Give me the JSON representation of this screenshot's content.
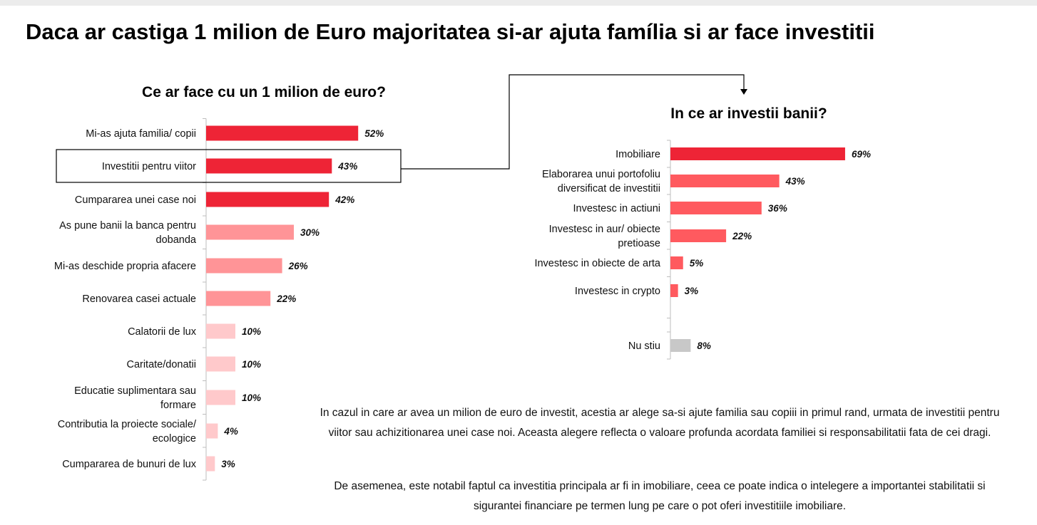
{
  "title": "Daca ar castiga 1 milion de Euro majoritatea si-ar ajuta família si ar face investitii",
  "summary": [
    "In cazul in care ar avea un milion de euro de investit, acestia ar alege sa-si ajute familia sau copiii in primul rand, urmata de investitii pentru viitor sau achizitionarea unei case noi. Aceasta alegere reflecta o valoare profunda acordata familiei si responsabilitatii fata de cei dragi.",
    "De asemenea, este notabil faptul ca investitia principala ar fi in imobiliare, ceea ce poate indica o intelegere a importantei stabilitatii si sigurantei financiare pe termen lung pe care o pot oferi investitiile imobiliare."
  ],
  "colors": {
    "strong_red": "#ee2436",
    "medium_red": "#ff5a5f",
    "salmon": "#ff9497",
    "light_pink": "#ffc9cb",
    "gray": "#c8c8c8"
  },
  "chart_data": [
    {
      "type": "bar",
      "orientation": "horizontal",
      "title": "Ce ar face cu un 1 milion de euro?",
      "xlim": [
        0,
        100
      ],
      "grid": false,
      "highlighted_category": "Investitii pentru viitor",
      "categories": [
        [
          "Mi-as ajuta familia/ copii"
        ],
        [
          "Investitii pentru viitor"
        ],
        [
          "Cumpararea unei case noi"
        ],
        [
          "As pune banii la banca pentru",
          "dobanda"
        ],
        [
          "Mi-as deschide propria afacere"
        ],
        [
          "Renovarea casei actuale"
        ],
        [
          "Calatorii de lux"
        ],
        [
          "Caritate/donatii"
        ],
        [
          "Educatie suplimentara sau",
          "formare"
        ],
        [
          "Contributia la proiecte sociale/",
          "ecologice"
        ],
        [
          "Cumpararea de bunuri de lux"
        ]
      ],
      "values": [
        52,
        43,
        42,
        30,
        26,
        22,
        10,
        10,
        10,
        4,
        3
      ],
      "value_labels": [
        "52%",
        "43%",
        "42%",
        "30%",
        "26%",
        "22%",
        "10%",
        "10%",
        "10%",
        "4%",
        "3%"
      ],
      "bar_colors": [
        "#ee2436",
        "#ee2436",
        "#ee2436",
        "#ff9497",
        "#ff9497",
        "#ff9497",
        "#ffc9cb",
        "#ffc9cb",
        "#ffc9cb",
        "#ffc9cb",
        "#ffc9cb"
      ]
    },
    {
      "type": "bar",
      "orientation": "horizontal",
      "title": "In ce ar investii banii?",
      "xlim": [
        0,
        100
      ],
      "grid": false,
      "categories": [
        [
          "Imobiliare"
        ],
        [
          "Elaborarea unui portofoliu",
          "diversificat de investitii"
        ],
        [
          "Investesc in actiuni"
        ],
        [
          "Investesc in aur/ obiecte",
          "pretioase"
        ],
        [
          "Investesc in obiecte de arta"
        ],
        [
          "Investesc in crypto"
        ],
        [
          "Nu stiu"
        ]
      ],
      "values": [
        69,
        43,
        36,
        22,
        5,
        3,
        8
      ],
      "value_labels": [
        "69%",
        "43%",
        "36%",
        "22%",
        "5%",
        "3%",
        "8%"
      ],
      "bar_colors": [
        "#ee2436",
        "#ff5a5f",
        "#ff5a5f",
        "#ff5a5f",
        "#ff5a5f",
        "#ff5a5f",
        "#c8c8c8"
      ]
    }
  ]
}
